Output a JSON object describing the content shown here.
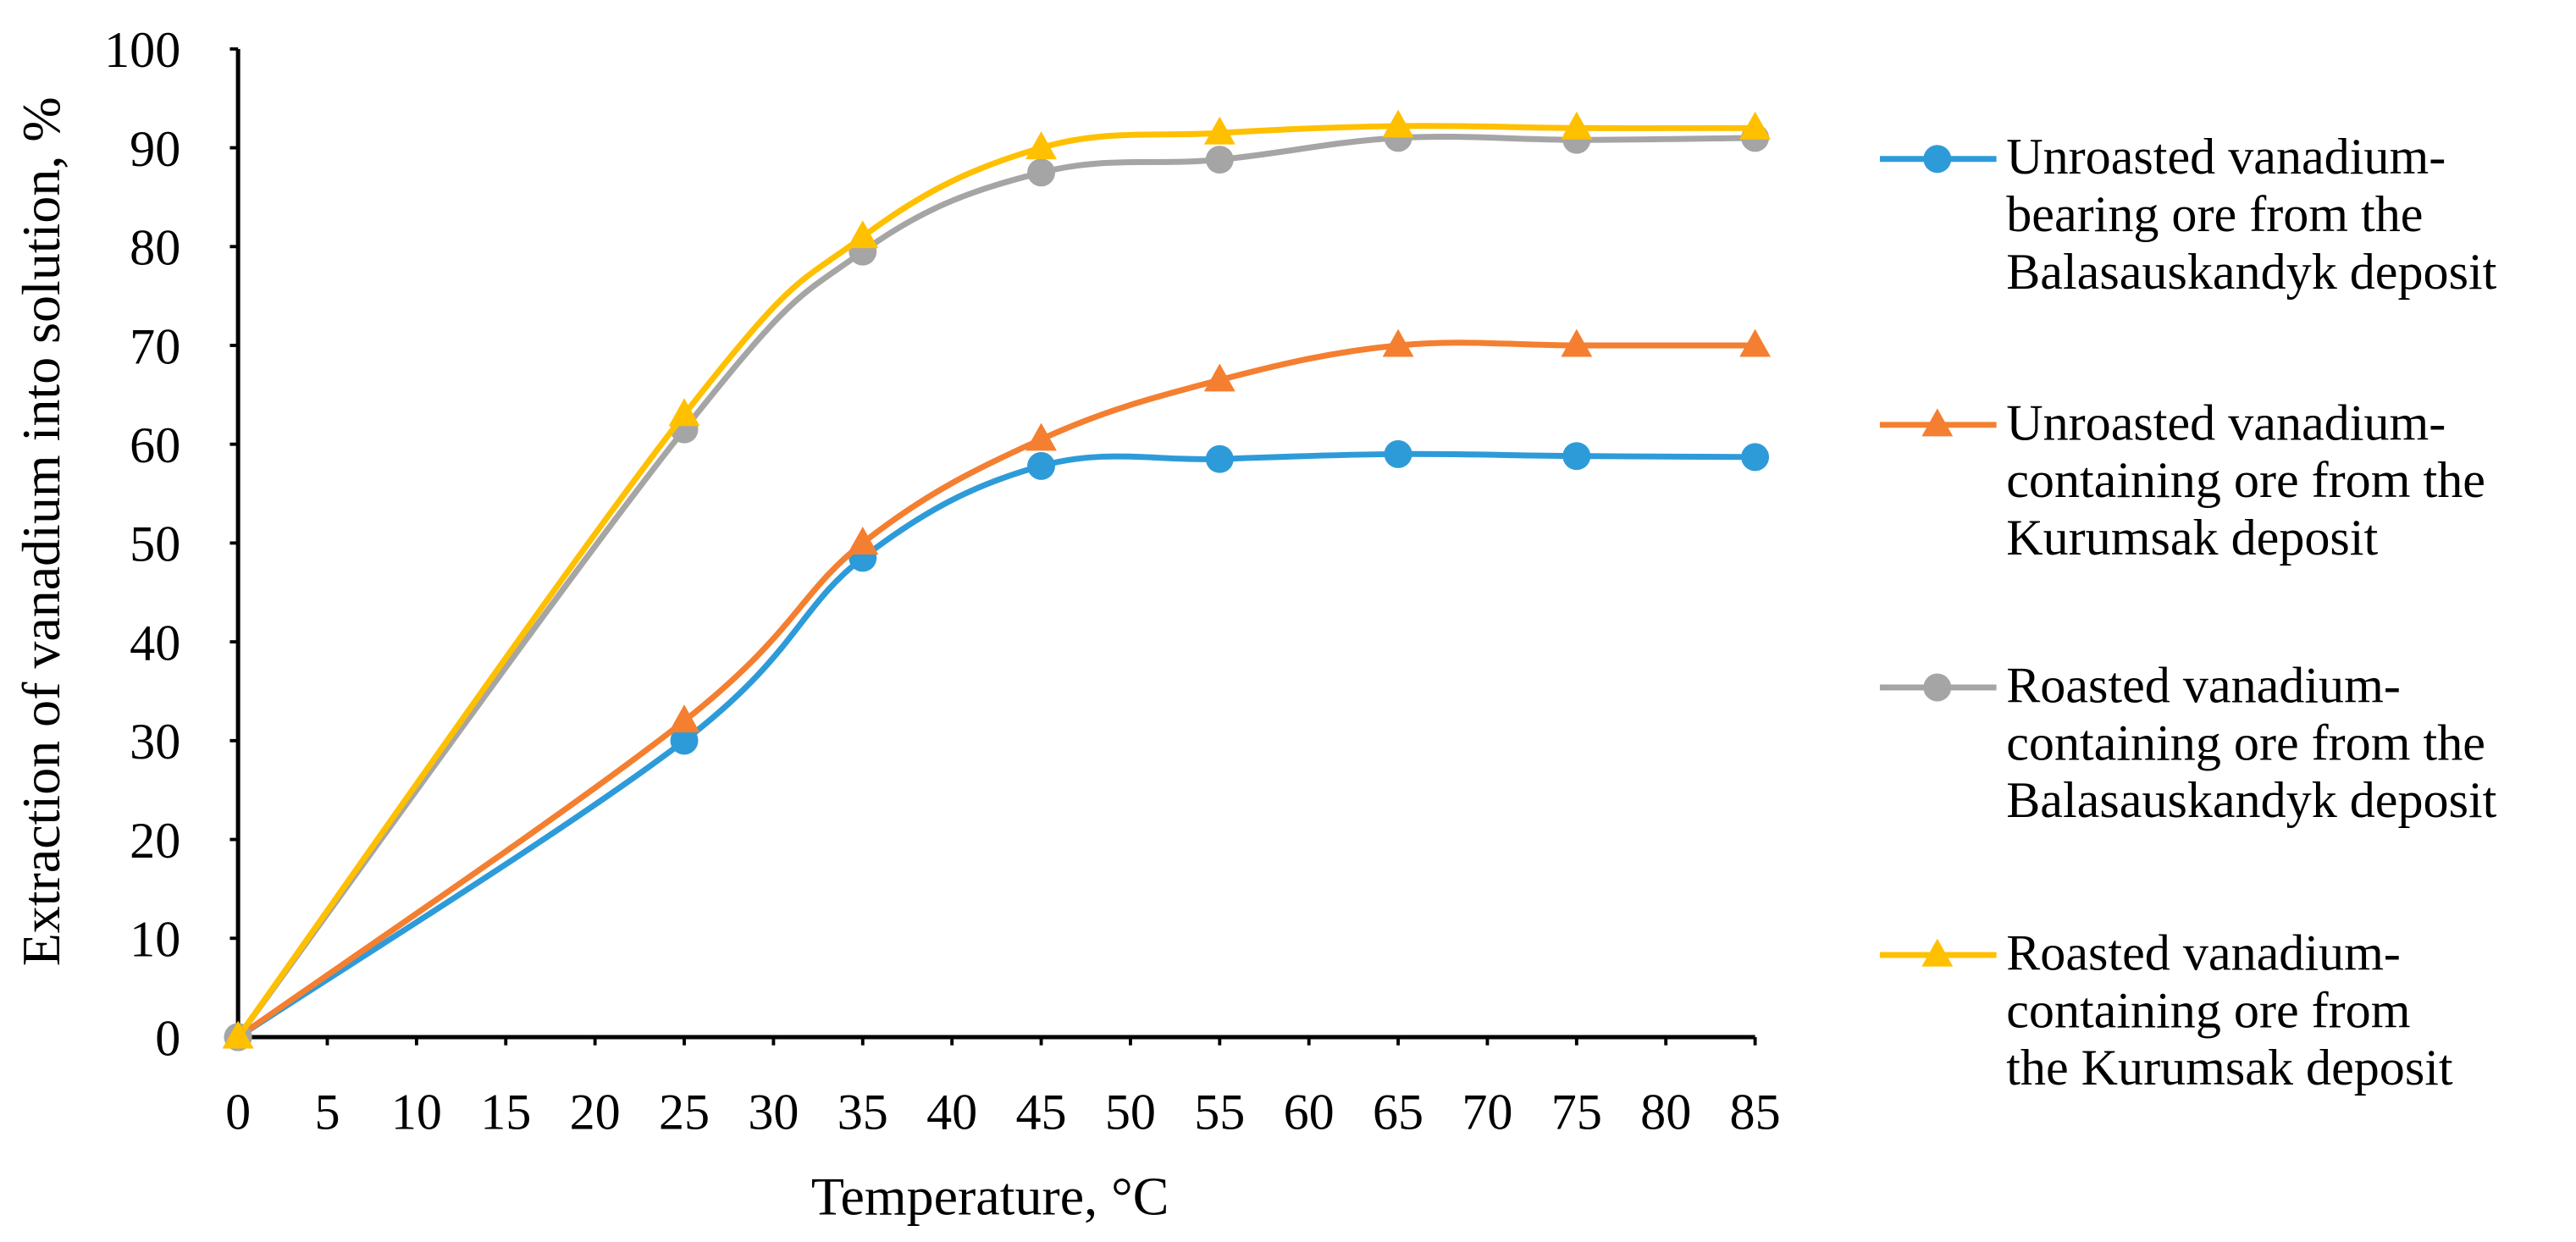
{
  "chart_data": {
    "type": "line",
    "title": "",
    "xlabel": "Temperature, °C",
    "ylabel": "Extraction of vanadium into solution, %",
    "xlim": [
      0,
      85
    ],
    "ylim": [
      0,
      100
    ],
    "x_ticks": [
      0,
      5,
      10,
      15,
      20,
      25,
      30,
      35,
      40,
      45,
      50,
      55,
      60,
      65,
      70,
      75,
      80,
      85
    ],
    "y_ticks": [
      0,
      10,
      20,
      30,
      40,
      50,
      60,
      70,
      80,
      90,
      100
    ],
    "grid": false,
    "legend_position": "right",
    "x": [
      0,
      25,
      35,
      45,
      55,
      65,
      75,
      85
    ],
    "series": [
      {
        "name": "Unroasted vanadium-bearing ore from the Balasauskandyk deposit",
        "legend_lines": [
          "Unroasted vanadium-",
          "bearing ore from the",
          "Balasauskandyk deposit"
        ],
        "marker": "circle",
        "color": "#2E9BD9",
        "values": [
          0,
          30,
          48.5,
          57.8,
          58.5,
          59,
          58.8,
          58.7
        ]
      },
      {
        "name": "Unroasted vanadium-containing ore from the Kurumsak deposit",
        "legend_lines": [
          "Unroasted vanadium-",
          "containing ore from the",
          "Kurumsak deposit"
        ],
        "marker": "triangle",
        "color": "#F47F30",
        "values": [
          0,
          32,
          50,
          60.5,
          66.5,
          70,
          70,
          70
        ]
      },
      {
        "name": "Roasted vanadium-containing ore from the Balasauskandyk deposit",
        "legend_lines": [
          "Roasted vanadium-",
          "containing ore from the",
          "Balasauskandyk deposit"
        ],
        "marker": "circle",
        "color": "#A5A5A5",
        "values": [
          0,
          61.5,
          79.5,
          87.5,
          88.8,
          91,
          90.8,
          91
        ]
      },
      {
        "name": "Roasted vanadium-containing ore from the Kurumsak deposit",
        "legend_lines": [
          "Roasted vanadium-",
          "containing ore from",
          "the Kurumsak deposit"
        ],
        "marker": "triangle",
        "color": "#FFC000",
        "values": [
          0,
          63,
          81,
          90,
          91.5,
          92.2,
          92,
          92
        ]
      }
    ]
  }
}
